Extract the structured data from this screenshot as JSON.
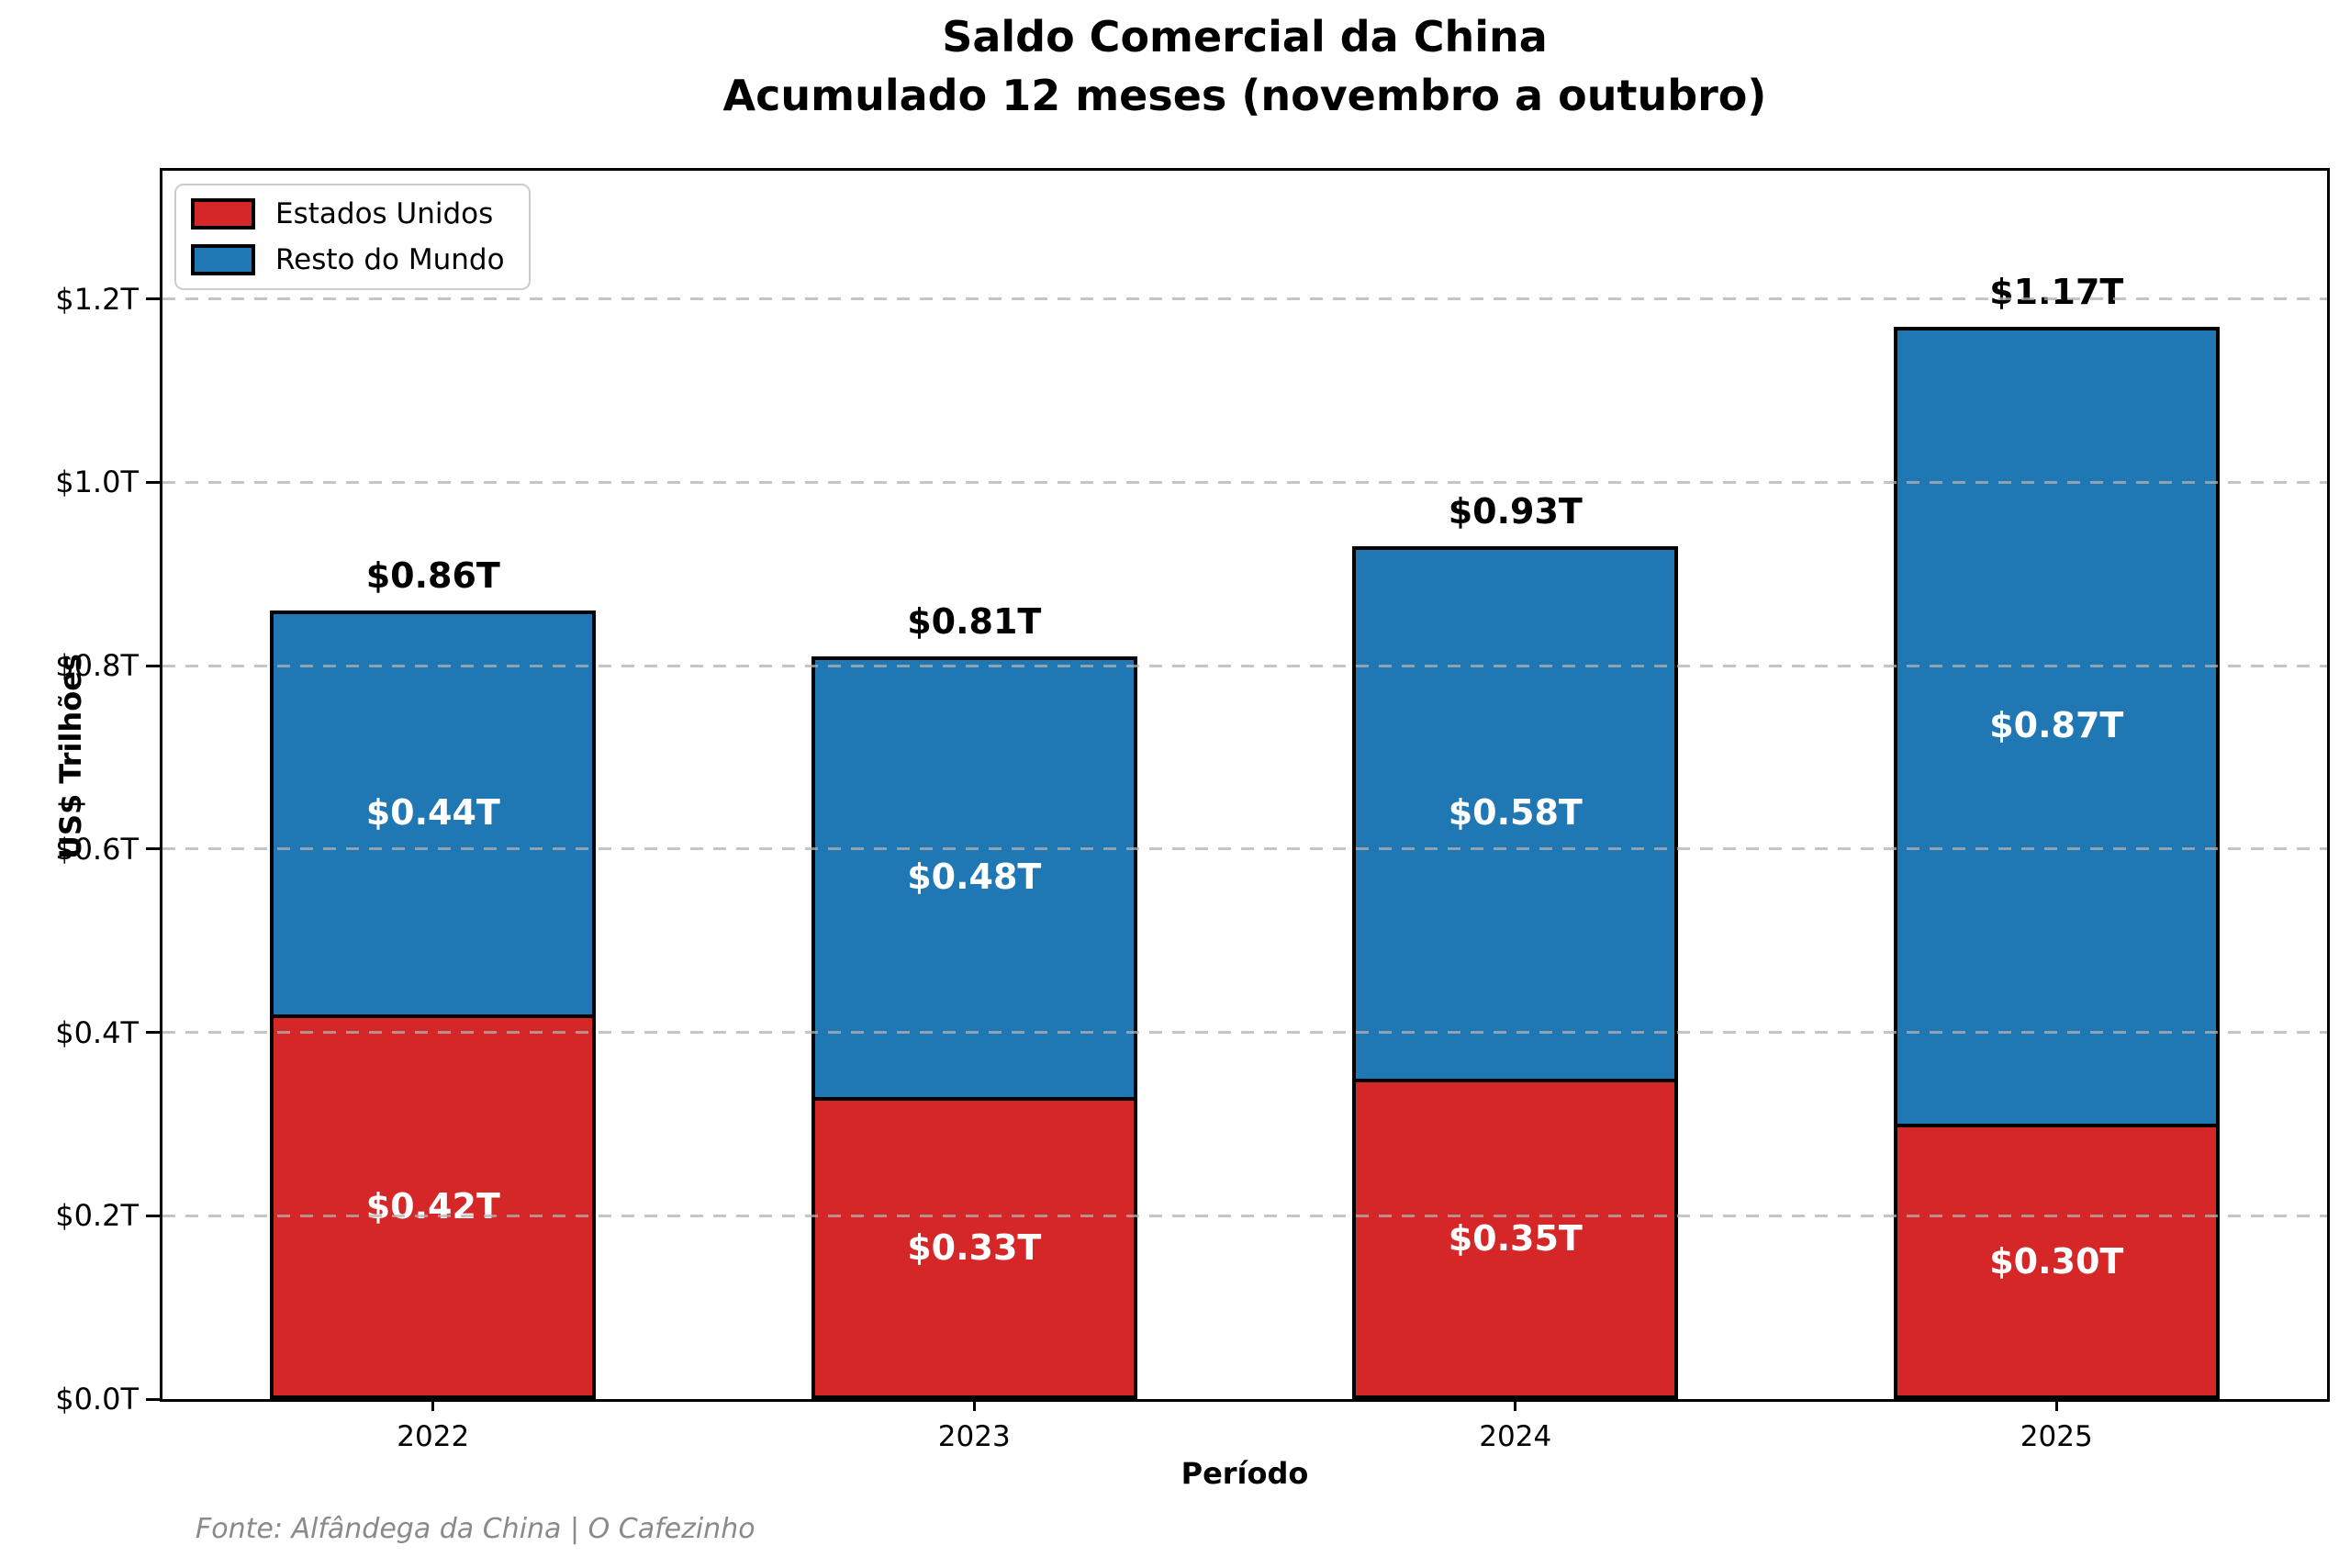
{
  "title": {
    "line1": "Saldo Comercial da China",
    "line2": "Acumulado 12 meses (novembro a outubro)"
  },
  "legend": {
    "items": [
      {
        "label": "Estados Unidos",
        "color": "#d62728"
      },
      {
        "label": "Resto do Mundo",
        "color": "#1f77b4"
      }
    ]
  },
  "axes": {
    "y_label": "US$ Trilhões",
    "x_label": "Período",
    "y_ticks": [
      {
        "v": 0.0,
        "label": "$0.0T"
      },
      {
        "v": 0.2,
        "label": "$0.2T"
      },
      {
        "v": 0.4,
        "label": "$0.4T"
      },
      {
        "v": 0.6,
        "label": "$0.6T"
      },
      {
        "v": 0.8,
        "label": "$0.8T"
      },
      {
        "v": 1.0,
        "label": "$1.0T"
      },
      {
        "v": 1.2,
        "label": "$1.2T"
      }
    ]
  },
  "source_note": "Fonte: Alfândega da China | O Cafezinho",
  "colors": {
    "us": "#d62728",
    "world": "#1f77b4",
    "grid": "rgba(178,178,178,0.75)",
    "source_text": "#8a8a8a"
  },
  "chart_data": {
    "type": "bar",
    "stacked": true,
    "title": "Saldo Comercial da China — Acumulado 12 meses (novembro a outubro)",
    "xlabel": "Período",
    "ylabel": "US$ Trilhões",
    "ylim": [
      0,
      1.34
    ],
    "grid": true,
    "legend_position": "upper left",
    "categories": [
      "2022",
      "2023",
      "2024",
      "2025"
    ],
    "series": [
      {
        "name": "Estados Unidos",
        "color": "#d62728",
        "values": [
          0.42,
          0.33,
          0.35,
          0.3
        ],
        "labels": [
          "$0.42T",
          "$0.33T",
          "$0.35T",
          "$0.30T"
        ]
      },
      {
        "name": "Resto do Mundo",
        "color": "#1f77b4",
        "values": [
          0.44,
          0.48,
          0.58,
          0.87
        ],
        "labels": [
          "$0.44T",
          "$0.48T",
          "$0.58T",
          "$0.87T"
        ]
      }
    ],
    "totals": [
      0.86,
      0.81,
      0.93,
      1.17
    ],
    "total_labels": [
      "$0.86T",
      "$0.81T",
      "$0.93T",
      "$1.17T"
    ]
  }
}
